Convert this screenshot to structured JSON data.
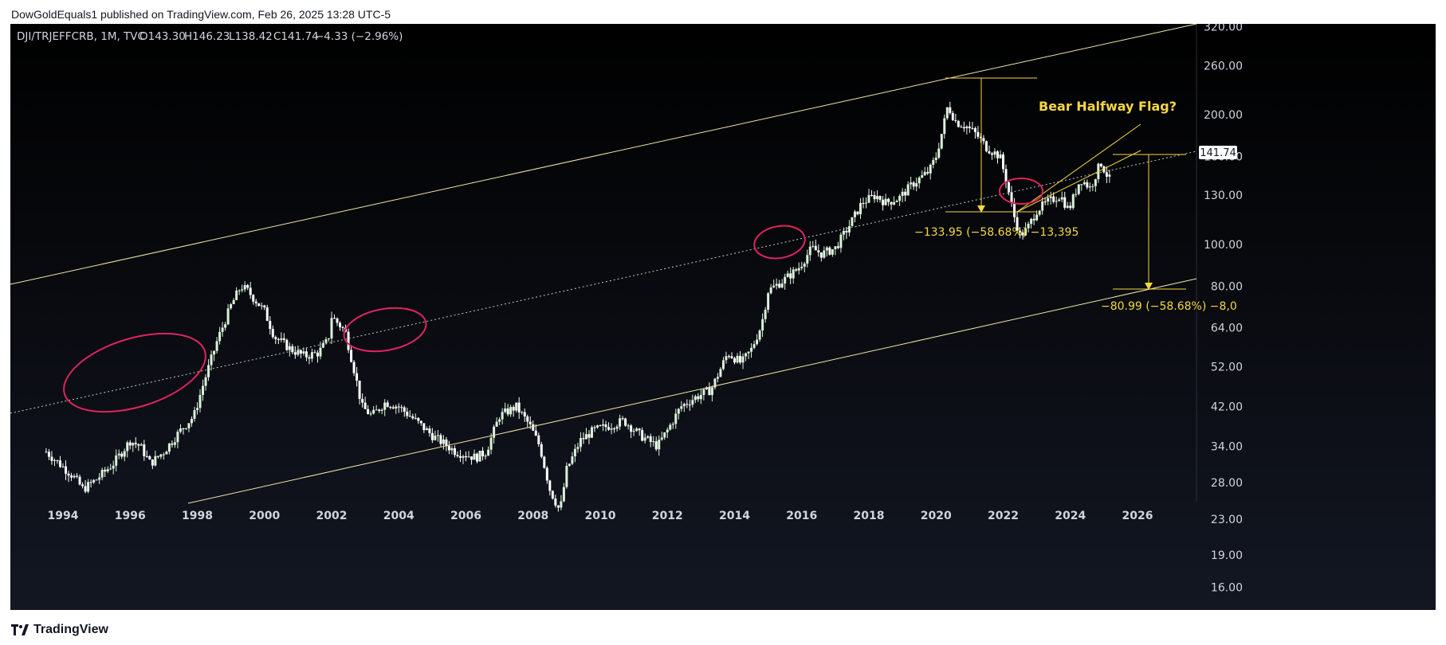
{
  "header": {
    "publish_line": "DowGoldEquals1 published on TradingView.com, Feb 26, 2025 13:28 UTC-5"
  },
  "footer": {
    "brand": "TradingView",
    "logo_icon": "tradingview-logo-icon"
  },
  "colors": {
    "background_top": "#000000",
    "background_bottom": "#131722",
    "candle_up": "#d9f2d9",
    "candle_down": "#ffffff",
    "trendline": "#f0e6a8",
    "annotation": "#f5d742",
    "ellipse": "#e0245e",
    "axis_text": "#d1d4dc",
    "price_label_bg": "#ffffff",
    "price_label_text": "#131722"
  },
  "chart_data": {
    "type": "candlestick",
    "symbol_line": "DJI/TRJEFFCRB, 1M, TVC",
    "ohlc_labels": {
      "O": "O143.30",
      "H": "H146.23",
      "L": "L138.42",
      "C": "C141.74",
      "chg": "−4.33 (−2.96%)"
    },
    "scale": "log",
    "last_price_label": "141.74",
    "x_ticks": [
      "1994",
      "1996",
      "1998",
      "2000",
      "2002",
      "2004",
      "2006",
      "2008",
      "2010",
      "2012",
      "2014",
      "2016",
      "2018",
      "2020",
      "2022",
      "2024",
      "2026"
    ],
    "y_ticks": [
      "320.00",
      "260.00",
      "200.00",
      "160.00",
      "130.00",
      "100.00",
      "80.00",
      "64.00",
      "52.00",
      "42.00",
      "34.00",
      "28.00",
      "23.00",
      "19.00",
      "16.00"
    ],
    "series_anchors": [
      {
        "x": 1993.5,
        "y": 33
      },
      {
        "x": 1994.3,
        "y": 29
      },
      {
        "x": 1994.6,
        "y": 27
      },
      {
        "x": 1995.0,
        "y": 28.5
      },
      {
        "x": 1995.5,
        "y": 31
      },
      {
        "x": 1996.0,
        "y": 35
      },
      {
        "x": 1996.3,
        "y": 34
      },
      {
        "x": 1996.6,
        "y": 31
      },
      {
        "x": 1997.0,
        "y": 33
      },
      {
        "x": 1997.5,
        "y": 37
      },
      {
        "x": 1997.9,
        "y": 40
      },
      {
        "x": 1998.2,
        "y": 48
      },
      {
        "x": 1998.6,
        "y": 60
      },
      {
        "x": 1999.0,
        "y": 72
      },
      {
        "x": 1999.3,
        "y": 80
      },
      {
        "x": 1999.5,
        "y": 78
      },
      {
        "x": 2000.0,
        "y": 70
      },
      {
        "x": 2000.3,
        "y": 61
      },
      {
        "x": 2000.8,
        "y": 57
      },
      {
        "x": 2001.2,
        "y": 55
      },
      {
        "x": 2001.6,
        "y": 56
      },
      {
        "x": 2001.9,
        "y": 60
      },
      {
        "x": 2002.0,
        "y": 68
      },
      {
        "x": 2002.4,
        "y": 63
      },
      {
        "x": 2002.7,
        "y": 50
      },
      {
        "x": 2002.9,
        "y": 42
      },
      {
        "x": 2003.2,
        "y": 40
      },
      {
        "x": 2003.6,
        "y": 43
      },
      {
        "x": 2004.0,
        "y": 42
      },
      {
        "x": 2004.5,
        "y": 39
      },
      {
        "x": 2005.0,
        "y": 36
      },
      {
        "x": 2005.7,
        "y": 33
      },
      {
        "x": 2006.3,
        "y": 32
      },
      {
        "x": 2006.6,
        "y": 33
      },
      {
        "x": 2007.0,
        "y": 40
      },
      {
        "x": 2007.5,
        "y": 42
      },
      {
        "x": 2007.9,
        "y": 38
      },
      {
        "x": 2008.2,
        "y": 34
      },
      {
        "x": 2008.5,
        "y": 27
      },
      {
        "x": 2008.8,
        "y": 24
      },
      {
        "x": 2009.0,
        "y": 30
      },
      {
        "x": 2009.4,
        "y": 35
      },
      {
        "x": 2009.8,
        "y": 37
      },
      {
        "x": 2010.3,
        "y": 38
      },
      {
        "x": 2010.7,
        "y": 39
      },
      {
        "x": 2011.2,
        "y": 36
      },
      {
        "x": 2011.7,
        "y": 34
      },
      {
        "x": 2012.0,
        "y": 37
      },
      {
        "x": 2012.4,
        "y": 42
      },
      {
        "x": 2012.8,
        "y": 44
      },
      {
        "x": 2013.3,
        "y": 46
      },
      {
        "x": 2013.8,
        "y": 56
      },
      {
        "x": 2014.2,
        "y": 53
      },
      {
        "x": 2014.5,
        "y": 57
      },
      {
        "x": 2014.8,
        "y": 65
      },
      {
        "x": 2015.0,
        "y": 78
      },
      {
        "x": 2015.5,
        "y": 83
      },
      {
        "x": 2015.9,
        "y": 88
      },
      {
        "x": 2016.3,
        "y": 98
      },
      {
        "x": 2016.6,
        "y": 95
      },
      {
        "x": 2017.0,
        "y": 98
      },
      {
        "x": 2017.4,
        "y": 110
      },
      {
        "x": 2017.8,
        "y": 125
      },
      {
        "x": 2018.2,
        "y": 130
      },
      {
        "x": 2018.5,
        "y": 125
      },
      {
        "x": 2018.9,
        "y": 128
      },
      {
        "x": 2019.3,
        "y": 138
      },
      {
        "x": 2019.8,
        "y": 148
      },
      {
        "x": 2020.0,
        "y": 160
      },
      {
        "x": 2020.2,
        "y": 185
      },
      {
        "x": 2020.35,
        "y": 210
      },
      {
        "x": 2020.6,
        "y": 192
      },
      {
        "x": 2020.9,
        "y": 188
      },
      {
        "x": 2021.2,
        "y": 180
      },
      {
        "x": 2021.5,
        "y": 168
      },
      {
        "x": 2021.9,
        "y": 160
      },
      {
        "x": 2022.1,
        "y": 140
      },
      {
        "x": 2022.3,
        "y": 118
      },
      {
        "x": 2022.5,
        "y": 105
      },
      {
        "x": 2022.7,
        "y": 108
      },
      {
        "x": 2023.0,
        "y": 120
      },
      {
        "x": 2023.3,
        "y": 125
      },
      {
        "x": 2023.7,
        "y": 130
      },
      {
        "x": 2023.95,
        "y": 120
      },
      {
        "x": 2024.3,
        "y": 142
      },
      {
        "x": 2024.6,
        "y": 135
      },
      {
        "x": 2024.9,
        "y": 155
      },
      {
        "x": 2025.15,
        "y": 141.74
      }
    ],
    "annotations": {
      "title": "Bear Halfway Flag?",
      "measure1": "−133.95 (−58.68%) −13,395",
      "measure2": "−80.99 (−58.68%) −8,0"
    }
  }
}
